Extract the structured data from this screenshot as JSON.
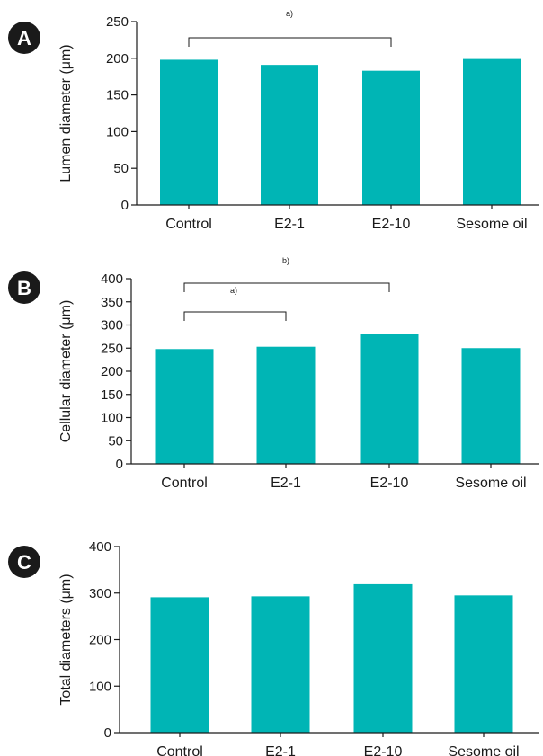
{
  "bar_color": "#00b5b5",
  "badge_color": "#1a1a1a",
  "chart_data": [
    {
      "panel": "A",
      "type": "bar",
      "categories": [
        "Control",
        "E2-1",
        "E2-10",
        "Sesome oil"
      ],
      "values": [
        198,
        191,
        183,
        199
      ],
      "ylabel": "Lumen diameter (μm)",
      "ylim": [
        0,
        250
      ],
      "yticks": [
        0,
        50,
        100,
        150,
        200,
        250
      ],
      "annotations": [
        {
          "label": "a)",
          "from": 0,
          "to": 2
        }
      ]
    },
    {
      "panel": "B",
      "type": "bar",
      "categories": [
        "Control",
        "E2-1",
        "E2-10",
        "Sesome oil"
      ],
      "values": [
        248,
        253,
        280,
        250
      ],
      "ylabel": "Cellular diameter (μm)",
      "ylim": [
        0,
        400
      ],
      "yticks": [
        0,
        50,
        100,
        150,
        200,
        250,
        300,
        350,
        400
      ],
      "annotations": [
        {
          "label": "b)",
          "from": 0,
          "to": 2
        },
        {
          "label": "a)",
          "from": 0,
          "to": 1
        }
      ]
    },
    {
      "panel": "C",
      "type": "bar",
      "categories": [
        "Control",
        "E2-1",
        "E2-10",
        "Sesome oil"
      ],
      "values": [
        291,
        293,
        319,
        295
      ],
      "ylabel": "Total diameters (μm)",
      "ylim": [
        0,
        400
      ],
      "yticks": [
        0,
        100,
        200,
        300,
        400
      ],
      "annotations": []
    }
  ]
}
